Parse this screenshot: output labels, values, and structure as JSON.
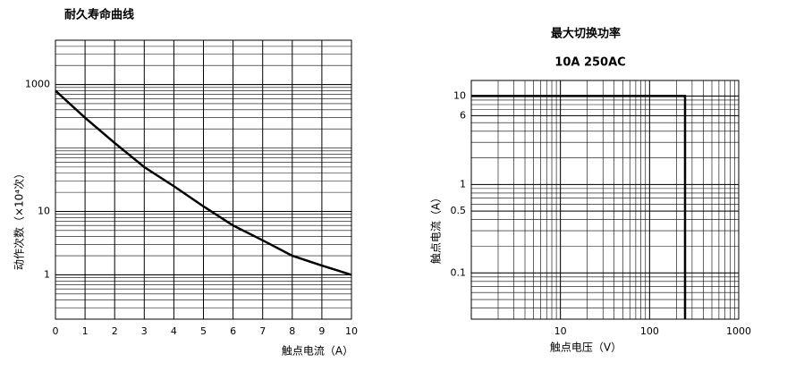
{
  "chart_data": [
    {
      "type": "line",
      "title": "耐久寿命曲线",
      "x_label": "触点电流（A）",
      "y_label": "动作次数（×10⁴次）",
      "x": [
        0,
        1,
        2,
        3,
        4,
        5,
        6,
        7,
        8,
        9,
        10
      ],
      "series": [
        {
          "name": "耐久寿命",
          "color": "#000000",
          "values": [
            800,
            300,
            120,
            50,
            25,
            12,
            6,
            3.5,
            2,
            1.4,
            1
          ]
        }
      ],
      "xlim": [
        0,
        10
      ],
      "xticks": [
        0,
        1,
        2,
        3,
        4,
        5,
        6,
        7,
        8,
        9,
        10
      ],
      "ylim": [
        0.2,
        5000
      ],
      "yticks": [
        1,
        10,
        1000
      ],
      "log_y": true,
      "grid": true
    },
    {
      "type": "line",
      "title": "最大切换功率",
      "subtitle": "10A  250AC",
      "x_label": "触点电压（V）",
      "y_label": "触点电流（A）",
      "x": [
        1,
        250,
        250
      ],
      "series": [
        {
          "name": "最大切换功率",
          "color": "#000000",
          "values": [
            10,
            10,
            0.03
          ]
        }
      ],
      "xlim": [
        1,
        1000
      ],
      "xticks": [
        10,
        100,
        1000
      ],
      "log_x": true,
      "ylim": [
        0.03,
        15
      ],
      "yticks": [
        0.1,
        0.5,
        1,
        6,
        10
      ],
      "log_y": true,
      "grid": true
    }
  ]
}
